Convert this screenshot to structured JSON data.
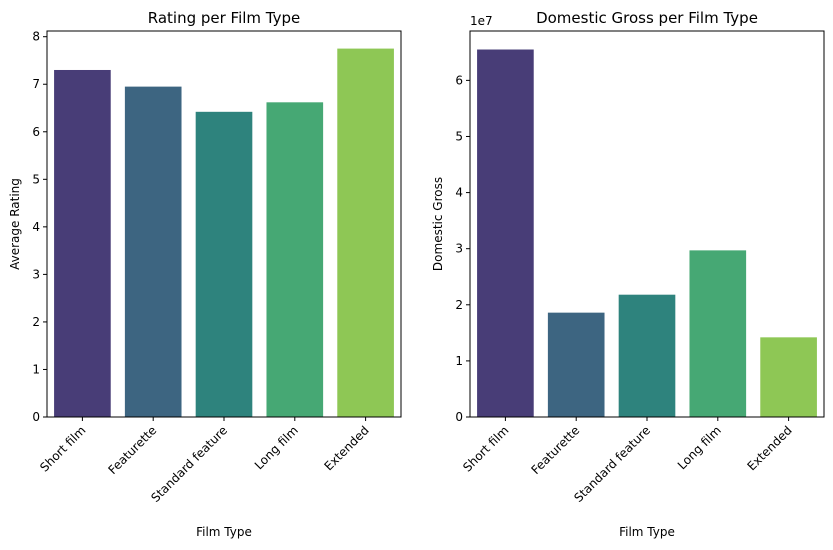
{
  "chart_data": [
    {
      "type": "bar",
      "title": "Rating per Film Type",
      "xlabel": "Film Type",
      "ylabel": "Average Rating",
      "categories": [
        "Short film",
        "Featurette",
        "Standard feature",
        "Long film",
        "Extended"
      ],
      "values": [
        7.3,
        6.95,
        6.42,
        6.62,
        7.75
      ],
      "ylim": [
        0,
        8.12
      ],
      "yticks": [
        0,
        1,
        2,
        3,
        4,
        5,
        6,
        7,
        8
      ],
      "y_offset_label": "",
      "colors": [
        "#483d77",
        "#3d6581",
        "#2e837d",
        "#46a874",
        "#8ec755"
      ],
      "grid": false
    },
    {
      "type": "bar",
      "title": "Domestic Gross per Film Type",
      "xlabel": "Film Type",
      "ylabel": "Domestic Gross",
      "categories": [
        "Short film",
        "Featurette",
        "Standard feature",
        "Long film",
        "Extended"
      ],
      "values": [
        65500000,
        18600000,
        21800000,
        29700000,
        14200000
      ],
      "ylim": [
        0,
        68800000
      ],
      "yticks": [
        0,
        10000000,
        20000000,
        30000000,
        40000000,
        50000000,
        60000000
      ],
      "ytick_labels": [
        "0",
        "1",
        "2",
        "3",
        "4",
        "5",
        "6"
      ],
      "y_offset_label": "1e7",
      "colors": [
        "#483d77",
        "#3d6581",
        "#2e837d",
        "#46a874",
        "#8ec755"
      ],
      "grid": false
    }
  ]
}
